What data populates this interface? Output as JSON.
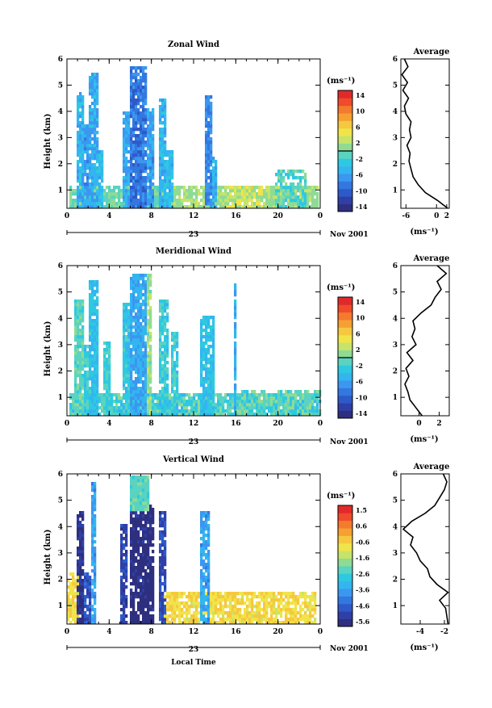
{
  "chart_data": [
    {
      "type": "heatmap",
      "title": "Zonal Wind",
      "ylabel": "Height (km)",
      "xlim": [
        0,
        24
      ],
      "ylim": [
        0.3,
        6
      ],
      "xticks": [
        "0",
        "4",
        "8",
        "12",
        "16",
        "20",
        "0"
      ],
      "yticks": [
        "1",
        "2",
        "3",
        "4",
        "5",
        "6"
      ],
      "date_label": "23",
      "month_label": "Nov 2001",
      "colorbar": {
        "unit": "(ms⁻¹)",
        "ticks": [
          "14",
          "10",
          "6",
          "2",
          "-2",
          "-6",
          "-10",
          "-14"
        ],
        "colors": [
          "#2e2f7e",
          "#2f3fa6",
          "#2d5ac8",
          "#3377e0",
          "#3b97f0",
          "#33b5f0",
          "#2ec9e0",
          "#5ad3c0",
          "#8fdb94",
          "#c6e46a",
          "#f0e44a",
          "#f5c83f",
          "#f6a032",
          "#f47a2e",
          "#ef4b2c",
          "#e02a2a"
        ],
        "zero_line": true
      },
      "profile": {
        "title": "Average",
        "xlabel": "(ms⁻¹)",
        "xlim": [
          -7,
          2.5
        ],
        "xticks": [
          "-6",
          "0",
          "2"
        ],
        "xtick_values": [
          -6,
          0,
          2
        ],
        "height": [
          0.3,
          0.6,
          0.9,
          1.2,
          1.5,
          1.8,
          2.1,
          2.4,
          2.7,
          3.0,
          3.3,
          3.6,
          3.9,
          4.2,
          4.5,
          4.8,
          5.1,
          5.4,
          5.7,
          6.0
        ],
        "value": [
          2.2,
          0.2,
          -2.2,
          -3.6,
          -4.6,
          -5.0,
          -5.4,
          -5.2,
          -5.8,
          -5.0,
          -5.3,
          -5.0,
          -6.0,
          -6.3,
          -5.5,
          -6.6,
          -5.7,
          -6.8,
          -5.6,
          -6.3
        ]
      }
    },
    {
      "type": "heatmap",
      "title": "Meridional Wind",
      "ylabel": "Height (km)",
      "xlim": [
        0,
        24
      ],
      "ylim": [
        0.3,
        6
      ],
      "xticks": [
        "0",
        "4",
        "8",
        "12",
        "16",
        "20",
        "0"
      ],
      "yticks": [
        "1",
        "2",
        "3",
        "4",
        "5",
        "6"
      ],
      "date_label": "23",
      "month_label": "Nov 2001",
      "colorbar": {
        "unit": "(ms⁻¹)",
        "ticks": [
          "14",
          "10",
          "6",
          "2",
          "-2",
          "-6",
          "-10",
          "-14"
        ],
        "colors": [
          "#2e2f7e",
          "#2f3fa6",
          "#2d5ac8",
          "#3377e0",
          "#3b97f0",
          "#33b5f0",
          "#2ec9e0",
          "#5ad3c0",
          "#8fdb94",
          "#c6e46a",
          "#f0e44a",
          "#f5c83f",
          "#f6a032",
          "#f47a2e",
          "#ef4b2c",
          "#e02a2a"
        ],
        "zero_line": true
      },
      "profile": {
        "title": "Average",
        "xlabel": "(ms⁻¹)",
        "xlim": [
          -1.8,
          3.0
        ],
        "xticks": [
          "0",
          "2"
        ],
        "xtick_values": [
          0,
          2
        ],
        "height": [
          0.3,
          0.6,
          0.9,
          1.2,
          1.5,
          1.8,
          2.1,
          2.4,
          2.7,
          3.0,
          3.3,
          3.6,
          3.9,
          4.2,
          4.5,
          4.8,
          5.1,
          5.4,
          5.7,
          6.0
        ],
        "value": [
          0.3,
          -0.3,
          -0.9,
          -1.1,
          -1.4,
          -1.0,
          -1.3,
          -0.6,
          -1.2,
          -0.3,
          -0.7,
          -0.4,
          -0.6,
          0.2,
          1.2,
          1.6,
          2.2,
          1.8,
          2.7,
          1.8
        ]
      }
    },
    {
      "type": "heatmap",
      "title": "Vertical Wind",
      "ylabel": "Height (km)",
      "xlabel": "Local Time",
      "xlim": [
        0,
        24
      ],
      "ylim": [
        0.3,
        6
      ],
      "xticks": [
        "0",
        "4",
        "8",
        "12",
        "16",
        "20",
        "0"
      ],
      "yticks": [
        "1",
        "2",
        "3",
        "4",
        "5",
        "6"
      ],
      "date_label": "23",
      "month_label": "Nov 2001",
      "colorbar": {
        "unit": "(ms⁻¹)",
        "ticks": [
          "1.5",
          "0.6",
          "-0.6",
          "-1.6",
          "-2.6",
          "-3.6",
          "-4.6",
          "-5.6"
        ],
        "colors": [
          "#2e2f7e",
          "#2f3fa6",
          "#2d5ac8",
          "#3377e0",
          "#3b97f0",
          "#33b5f0",
          "#2ec9e0",
          "#5ad3c0",
          "#8fdb94",
          "#c6e46a",
          "#f0e44a",
          "#f5c83f",
          "#f6a032",
          "#f47a2e",
          "#ef4b2c",
          "#e02a2a"
        ],
        "zero_line": false
      },
      "profile": {
        "title": "Average",
        "xlabel": "(ms⁻¹)",
        "xlim": [
          -5.6,
          -1.6
        ],
        "xticks": [
          "-4",
          "-2"
        ],
        "xtick_values": [
          -4,
          -2
        ],
        "height": [
          0.3,
          0.6,
          0.9,
          1.2,
          1.5,
          1.8,
          2.1,
          2.4,
          2.7,
          3.0,
          3.3,
          3.6,
          3.9,
          4.2,
          4.5,
          4.8,
          5.1,
          5.4,
          5.7,
          6.0
        ],
        "value": [
          -1.7,
          -1.8,
          -1.9,
          -2.4,
          -1.7,
          -2.6,
          -3.2,
          -3.4,
          -4.0,
          -4.3,
          -4.8,
          -4.6,
          -5.4,
          -4.7,
          -3.6,
          -2.8,
          -2.4,
          -2.0,
          -1.8,
          -2.1
        ]
      }
    }
  ]
}
